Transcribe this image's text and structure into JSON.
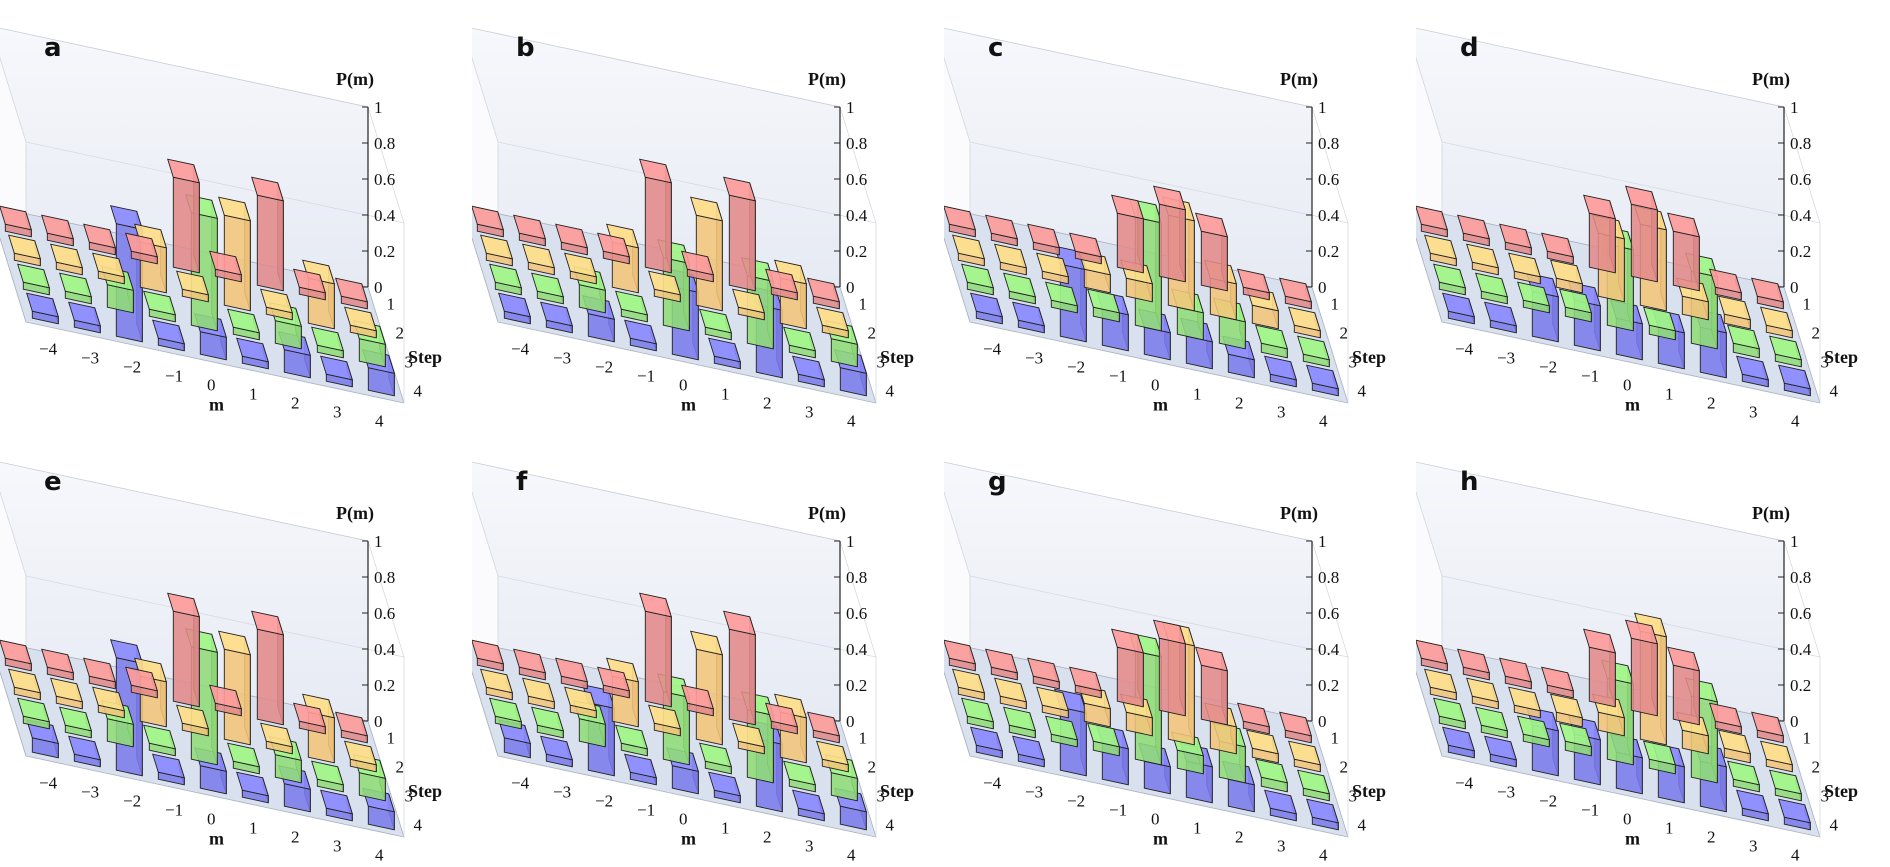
{
  "figure": {
    "colors": {
      "step1": "#e28a8a",
      "step2": "#f2c57a",
      "step3": "#8fdc78",
      "step4": "#7b7bea",
      "floor": "#d9e0ee",
      "back_wall": "#e6eaf3",
      "edge": "#222222"
    }
  },
  "chart_data": [
    {
      "label": "a",
      "type": "bar3d",
      "title": "",
      "xlabel": "m",
      "ylabel": "Step",
      "zlabel": "P(m)",
      "x": [
        -4,
        -3,
        -2,
        -1,
        0,
        1,
        2,
        3,
        4
      ],
      "x_ticks": [
        "−4",
        "−3",
        "−2",
        "−1",
        "0",
        "1",
        "2",
        "3",
        "4"
      ],
      "y_ticks": [
        "1",
        "2",
        "3",
        "4"
      ],
      "z_ticks": [
        "0",
        "0.2",
        "0.4",
        "0.6",
        "0.8",
        "1"
      ],
      "zlim": [
        0,
        1
      ],
      "series": [
        {
          "name": "1",
          "values": [
            0,
            0,
            0,
            0,
            0.5,
            0,
            0.5,
            0,
            0
          ]
        },
        {
          "name": "2",
          "values": [
            0,
            0,
            0,
            0.25,
            0,
            0.5,
            0,
            0.25,
            0
          ]
        },
        {
          "name": "3",
          "values": [
            0,
            0,
            0.125,
            0,
            0.625,
            0,
            0.125,
            0,
            0.125
          ]
        },
        {
          "name": "4",
          "values": [
            0,
            0,
            0.625,
            0,
            0.125,
            0,
            0.125,
            0,
            0.125
          ]
        }
      ]
    },
    {
      "label": "b",
      "type": "bar3d",
      "title": "",
      "xlabel": "m",
      "ylabel": "Step",
      "zlabel": "P(m)",
      "x": [
        -4,
        -3,
        -2,
        -1,
        0,
        1,
        2,
        3,
        4
      ],
      "x_ticks": [
        "−4",
        "−3",
        "−2",
        "−1",
        "0",
        "1",
        "2",
        "3",
        "4"
      ],
      "y_ticks": [
        "1",
        "2",
        "3",
        "4"
      ],
      "z_ticks": [
        "0",
        "0.2",
        "0.4",
        "0.6",
        "0.8",
        "1"
      ],
      "zlim": [
        0,
        1
      ],
      "series": [
        {
          "name": "1",
          "values": [
            0,
            0,
            0,
            0,
            0.5,
            0,
            0.5,
            0,
            0
          ]
        },
        {
          "name": "2",
          "values": [
            0,
            0,
            0,
            0.25,
            0,
            0.5,
            0,
            0.25,
            0
          ]
        },
        {
          "name": "3",
          "values": [
            0,
            0,
            0.125,
            0,
            0.375,
            0,
            0.375,
            0,
            0.125
          ]
        },
        {
          "name": "4",
          "values": [
            0,
            0,
            0.125,
            0,
            0.375,
            0,
            0.375,
            0,
            0.125
          ]
        }
      ]
    },
    {
      "label": "c",
      "type": "bar3d",
      "title": "",
      "xlabel": "m",
      "ylabel": "Step",
      "zlabel": "P(m)",
      "x": [
        -4,
        -3,
        -2,
        -1,
        0,
        1,
        2,
        3,
        4
      ],
      "x_ticks": [
        "−4",
        "−3",
        "−2",
        "−1",
        "0",
        "1",
        "2",
        "3",
        "4"
      ],
      "y_ticks": [
        "1",
        "2",
        "3",
        "4"
      ],
      "z_ticks": [
        "0",
        "0.2",
        "0.4",
        "0.6",
        "0.8",
        "1"
      ],
      "zlim": [
        0,
        1
      ],
      "series": [
        {
          "name": "1",
          "values": [
            0,
            0,
            0,
            0,
            0.3,
            0.4,
            0.3,
            0,
            0
          ]
        },
        {
          "name": "2",
          "values": [
            0,
            0,
            0,
            0.1,
            0.1,
            0.5,
            0.2,
            0.1,
            0
          ]
        },
        {
          "name": "3",
          "values": [
            0,
            0,
            0,
            0.05,
            0.6,
            0.15,
            0.15,
            0.05,
            0
          ]
        },
        {
          "name": "4",
          "values": [
            0,
            0,
            0.4,
            0.2,
            0.15,
            0.15,
            0.1,
            0,
            0
          ]
        }
      ]
    },
    {
      "label": "d",
      "type": "bar3d",
      "title": "",
      "xlabel": "m",
      "ylabel": "Step",
      "zlabel": "P(m)",
      "x": [
        -4,
        -3,
        -2,
        -1,
        0,
        1,
        2,
        3,
        4
      ],
      "x_ticks": [
        "−4",
        "−3",
        "−2",
        "−1",
        "0",
        "1",
        "2",
        "3",
        "4"
      ],
      "y_ticks": [
        "1",
        "2",
        "3",
        "4"
      ],
      "z_ticks": [
        "0",
        "0.2",
        "0.4",
        "0.6",
        "0.8",
        "1"
      ],
      "zlim": [
        0,
        1
      ],
      "series": [
        {
          "name": "1",
          "values": [
            0,
            0,
            0,
            0,
            0.3,
            0.4,
            0.3,
            0,
            0
          ]
        },
        {
          "name": "2",
          "values": [
            0,
            0,
            0,
            0.05,
            0.35,
            0.45,
            0.1,
            0.05,
            0
          ]
        },
        {
          "name": "3",
          "values": [
            0,
            0,
            0,
            0.05,
            0.45,
            0.05,
            0.4,
            0.05,
            0
          ]
        },
        {
          "name": "4",
          "values": [
            0,
            0,
            0.25,
            0.25,
            0.2,
            0.2,
            0.25,
            0,
            0
          ]
        }
      ]
    },
    {
      "label": "e",
      "type": "bar3d",
      "title": "",
      "xlabel": "m",
      "ylabel": "Step",
      "zlabel": "P(m)",
      "x": [
        -4,
        -3,
        -2,
        -1,
        0,
        1,
        2,
        3,
        4
      ],
      "x_ticks": [
        "−4",
        "−3",
        "−2",
        "−1",
        "0",
        "1",
        "2",
        "3",
        "4"
      ],
      "y_ticks": [
        "1",
        "2",
        "3",
        "4"
      ],
      "z_ticks": [
        "0",
        "0.2",
        "0.4",
        "0.6",
        "0.8",
        "1"
      ],
      "zlim": [
        0,
        1
      ],
      "series": [
        {
          "name": "1",
          "values": [
            0,
            0,
            0,
            0,
            0.5,
            0,
            0.5,
            0,
            0
          ]
        },
        {
          "name": "2",
          "values": [
            0,
            0,
            0,
            0.25,
            0,
            0.5,
            0,
            0.25,
            0
          ]
        },
        {
          "name": "3",
          "values": [
            0,
            0,
            0.125,
            0,
            0.625,
            0,
            0.125,
            0,
            0.125
          ]
        },
        {
          "name": "4",
          "values": [
            0.08,
            0,
            0.625,
            0,
            0.125,
            0,
            0.125,
            0,
            0.1
          ]
        }
      ]
    },
    {
      "label": "f",
      "type": "bar3d",
      "title": "",
      "xlabel": "m",
      "ylabel": "Step",
      "zlabel": "P(m)",
      "x": [
        -4,
        -3,
        -2,
        -1,
        0,
        1,
        2,
        3,
        4
      ],
      "x_ticks": [
        "−4",
        "−3",
        "−2",
        "−1",
        "0",
        "1",
        "2",
        "3",
        "4"
      ],
      "y_ticks": [
        "1",
        "2",
        "3",
        "4"
      ],
      "z_ticks": [
        "0",
        "0.2",
        "0.4",
        "0.6",
        "0.8",
        "1"
      ],
      "zlim": [
        0,
        1
      ],
      "series": [
        {
          "name": "1",
          "values": [
            0,
            0,
            0,
            0,
            0.5,
            0,
            0.5,
            0,
            0
          ]
        },
        {
          "name": "2",
          "values": [
            0,
            0,
            0,
            0.25,
            0,
            0.5,
            0,
            0.25,
            0
          ]
        },
        {
          "name": "3",
          "values": [
            0,
            0,
            0.125,
            0,
            0.375,
            0,
            0.375,
            0,
            0.125
          ]
        },
        {
          "name": "4",
          "values": [
            0.08,
            0,
            0.375,
            0,
            0.125,
            0,
            0.375,
            0,
            0.1
          ]
        }
      ]
    },
    {
      "label": "g",
      "type": "bar3d",
      "title": "",
      "xlabel": "m",
      "ylabel": "Step",
      "zlabel": "P(m)",
      "x": [
        -4,
        -3,
        -2,
        -1,
        0,
        1,
        2,
        3,
        4
      ],
      "x_ticks": [
        "−4",
        "−3",
        "−2",
        "−1",
        "0",
        "1",
        "2",
        "3",
        "4"
      ],
      "y_ticks": [
        "1",
        "2",
        "3",
        "4"
      ],
      "z_ticks": [
        "0",
        "0.2",
        "0.4",
        "0.6",
        "0.8",
        "1"
      ],
      "zlim": [
        0,
        1
      ],
      "series": [
        {
          "name": "1",
          "values": [
            0,
            0,
            0,
            0,
            0.3,
            0.4,
            0.3,
            0,
            0
          ]
        },
        {
          "name": "2",
          "values": [
            0,
            0,
            0,
            0.1,
            0.1,
            0.55,
            0.15,
            0.05,
            0
          ]
        },
        {
          "name": "3",
          "values": [
            0,
            0,
            0,
            0.05,
            0.6,
            0.1,
            0.2,
            0.05,
            0
          ]
        },
        {
          "name": "4",
          "values": [
            0,
            0,
            0.35,
            0.2,
            0.15,
            0.2,
            0.15,
            0,
            0
          ]
        }
      ]
    },
    {
      "label": "h",
      "type": "bar3d",
      "title": "",
      "xlabel": "m",
      "ylabel": "Step",
      "zlabel": "P(m)",
      "x": [
        -4,
        -3,
        -2,
        -1,
        0,
        1,
        2,
        3,
        4
      ],
      "x_ticks": [
        "−4",
        "−3",
        "−2",
        "−1",
        "0",
        "1",
        "2",
        "3",
        "4"
      ],
      "y_ticks": [
        "1",
        "2",
        "3",
        "4"
      ],
      "z_ticks": [
        "0",
        "0.2",
        "0.4",
        "0.6",
        "0.8",
        "1"
      ],
      "zlim": [
        0,
        1
      ],
      "series": [
        {
          "name": "1",
          "values": [
            0,
            0,
            0,
            0,
            0.3,
            0.4,
            0.3,
            0,
            0
          ]
        },
        {
          "name": "2",
          "values": [
            0,
            0,
            0,
            0.05,
            0.1,
            0.6,
            0.1,
            0.05,
            0
          ]
        },
        {
          "name": "3",
          "values": [
            0,
            0,
            0,
            0.05,
            0.45,
            0.05,
            0.45,
            0,
            0
          ]
        },
        {
          "name": "4",
          "values": [
            0,
            0,
            0.25,
            0.25,
            0.2,
            0.2,
            0.25,
            0,
            0
          ]
        }
      ]
    }
  ]
}
